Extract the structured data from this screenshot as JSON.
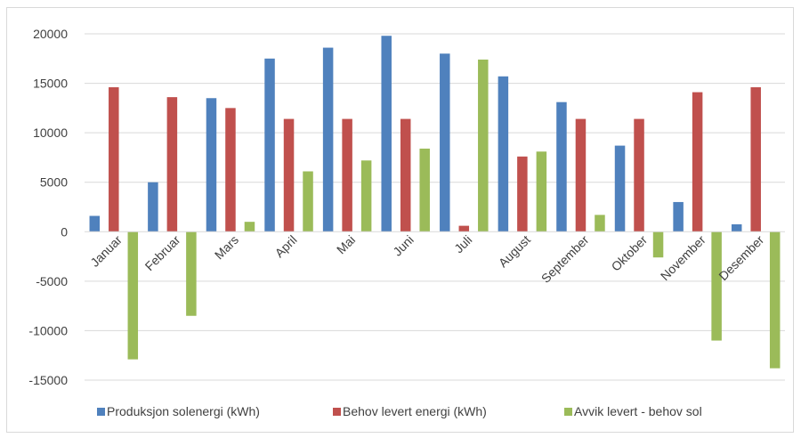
{
  "chart_data": {
    "type": "bar",
    "categories": [
      "Januar",
      "Februar",
      "Mars",
      "April",
      "Mai",
      "Juni",
      "Juli",
      "August",
      "September",
      "Oktober",
      "November",
      "Desember"
    ],
    "series": [
      {
        "name": "Produksjon solenergi (kWh)",
        "color": "#4f81bd",
        "values": [
          1600,
          5000,
          13500,
          17500,
          18600,
          19800,
          18000,
          15700,
          13100,
          8700,
          3000,
          750
        ]
      },
      {
        "name": "Behov levert energi (kWh)",
        "color": "#c0504d",
        "values": [
          14600,
          13600,
          12500,
          11400,
          11400,
          11400,
          600,
          7600,
          11400,
          11400,
          14100,
          14600
        ]
      },
      {
        "name": "Avvik levert - behov sol",
        "color": "#9bbb59",
        "values": [
          -12900,
          -8500,
          1000,
          6100,
          7200,
          8400,
          17400,
          8100,
          1700,
          -2600,
          -11000,
          -13800
        ]
      }
    ],
    "ylim": [
      -15000,
      20000
    ],
    "yticks": [
      "20000",
      "15000",
      "10000",
      "5000",
      "0",
      "-5000",
      "-10000",
      "-15000"
    ],
    "grid": true,
    "legend_position": "bottom"
  }
}
